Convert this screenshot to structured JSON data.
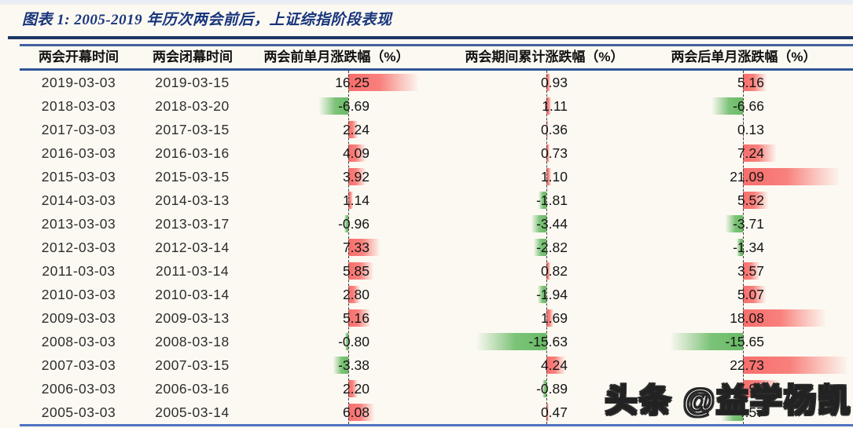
{
  "title": "图表 1:  2005-2019 年历次两会前后，上证综指阶段表现",
  "watermark": "头条 @益学杨凯",
  "colors": {
    "background": "#fcf9f2",
    "title_blue": "#17357c",
    "rule_navy": "#1e3766",
    "header_line_blue": "#2f5597",
    "bottom_line_blue": "#4f74c2",
    "positive_bar_red": "#f76e6c",
    "negative_bar_green": "#69bb66",
    "zero_axis": "#3c3c3c"
  },
  "chart_data": {
    "type": "table",
    "title": "图表 1: 2005-2019 年历次两会前后，上证综指阶段表现",
    "columns": [
      "两会开幕时间",
      "两会闭幕时间",
      "两会前单月涨跌幅（%）",
      "两会期间累计涨跌幅（%）",
      "两会后单月涨跌幅（%）"
    ],
    "row_fields": [
      "open_date",
      "close_date",
      "pre_pct",
      "during_pct",
      "post_pct"
    ],
    "rows": [
      [
        "2019-03-03",
        "2019-03-15",
        "16.25",
        "0.93",
        "5.16"
      ],
      [
        "2018-03-03",
        "2018-03-20",
        "-6.69",
        "1.11",
        "-6.66"
      ],
      [
        "2017-03-03",
        "2017-03-15",
        "2.24",
        "0.36",
        "0.13"
      ],
      [
        "2016-03-03",
        "2016-03-16",
        "4.09",
        "0.73",
        "7.24"
      ],
      [
        "2015-03-03",
        "2015-03-15",
        "3.92",
        "1.10",
        "21.09"
      ],
      [
        "2014-03-03",
        "2014-03-13",
        "1.14",
        "-1.81",
        "5.52"
      ],
      [
        "2013-03-03",
        "2013-03-17",
        "-0.96",
        "-3.44",
        "-3.71"
      ],
      [
        "2012-03-03",
        "2012-03-14",
        "7.33",
        "-2.82",
        "-1.34"
      ],
      [
        "2011-03-03",
        "2011-03-14",
        "5.85",
        "0.82",
        "3.57"
      ],
      [
        "2010-03-03",
        "2010-03-14",
        "2.80",
        "-1.94",
        "5.07"
      ],
      [
        "2009-03-03",
        "2009-03-13",
        "5.16",
        "1.69",
        "18.08"
      ],
      [
        "2008-03-03",
        "2008-03-18",
        "-0.80",
        "-15.63",
        "-15.65"
      ],
      [
        "2007-03-03",
        "2007-03-15",
        "-3.38",
        "4.24",
        "22.73"
      ],
      [
        "2006-03-03",
        "2006-03-16",
        "2.20",
        "-0.89",
        "7.98"
      ],
      [
        "2005-03-03",
        "2005-03-14",
        "6.08",
        "0.47",
        "-4.57"
      ]
    ],
    "bar_style": "gradient data bars: red = positive (extends right of dashed zero axis), green = negative (extends left)",
    "legend_position": "none",
    "grid": "off"
  }
}
